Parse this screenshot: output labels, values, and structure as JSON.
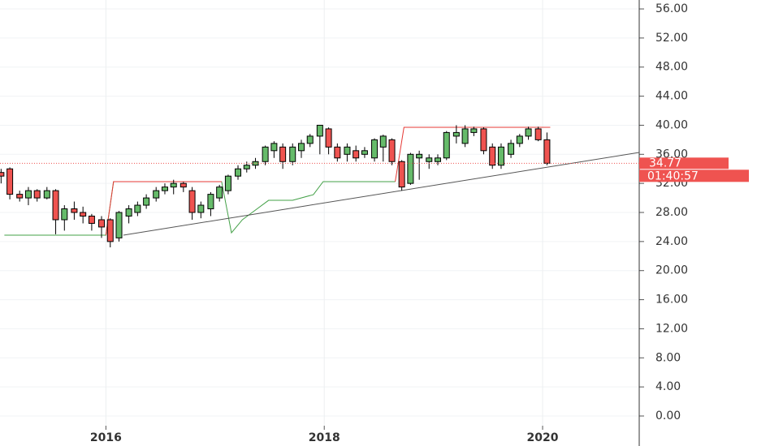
{
  "chart_data": {
    "type": "candlestick",
    "x": [
      2015.04,
      2015.12,
      2015.21,
      2015.29,
      2015.37,
      2015.46,
      2015.54,
      2015.62,
      2015.71,
      2015.79,
      2015.87,
      2015.96,
      2016.04,
      2016.12,
      2016.21,
      2016.29,
      2016.37,
      2016.46,
      2016.54,
      2016.62,
      2016.71,
      2016.79,
      2016.87,
      2016.96,
      2017.04,
      2017.12,
      2017.21,
      2017.29,
      2017.37,
      2017.46,
      2017.54,
      2017.62,
      2017.71,
      2017.79,
      2017.87,
      2017.96,
      2018.04,
      2018.12,
      2018.21,
      2018.29,
      2018.37,
      2018.46,
      2018.54,
      2018.62,
      2018.71,
      2018.79,
      2018.87,
      2018.96,
      2019.04,
      2019.12,
      2019.21,
      2019.29,
      2019.37,
      2019.46,
      2019.54,
      2019.62,
      2019.71,
      2019.79,
      2019.87,
      2019.96,
      2020.04
    ],
    "open": [
      33.5,
      34,
      30.5,
      30,
      31,
      30,
      31,
      27,
      28.5,
      28,
      27.5,
      27,
      27,
      24.5,
      27.5,
      28,
      29,
      30,
      31,
      31.5,
      32,
      31,
      28,
      28.5,
      30,
      31,
      33,
      34,
      34.5,
      35,
      36.5,
      37,
      35,
      36.5,
      37.5,
      38.5,
      39.5,
      37,
      36,
      36.5,
      36,
      35.5,
      37,
      38,
      35,
      32,
      35.5,
      35,
      35,
      35.5,
      38.5,
      37.5,
      39,
      39.5,
      37,
      34.5,
      36,
      37.5,
      38.5,
      39.5,
      38
    ],
    "high": [
      34,
      34.2,
      31,
      31.5,
      31.2,
      31.5,
      31.2,
      29,
      29.5,
      28.8,
      27.8,
      27.5,
      27.2,
      28.2,
      29,
      29.5,
      30.5,
      31.5,
      32,
      32.5,
      32.2,
      31.5,
      29.5,
      30.8,
      31.8,
      33.2,
      34.5,
      35,
      35.5,
      37.2,
      37.8,
      37.5,
      37.5,
      38,
      38.8,
      40,
      39.7,
      37.5,
      37.5,
      37.2,
      37,
      38.2,
      38.7,
      38.2,
      35.2,
      36.2,
      36.5,
      36,
      36,
      39.2,
      40,
      40,
      39.8,
      39.7,
      37.5,
      37.5,
      38,
      38.8,
      39.8,
      39.8,
      39
    ],
    "low": [
      32,
      29.8,
      29.5,
      29,
      29.5,
      29.8,
      25,
      25.5,
      27,
      26.5,
      25.5,
      24.5,
      23.2,
      24,
      26.5,
      27.5,
      28.5,
      29.5,
      30.5,
      30.5,
      30.8,
      27,
      27.2,
      27.5,
      29.5,
      30.5,
      32.5,
      33.5,
      34,
      34.5,
      35.5,
      34,
      34.5,
      35.5,
      37,
      36,
      36,
      35,
      35,
      35,
      35.5,
      35,
      35,
      34.5,
      31,
      31.8,
      32.5,
      34,
      34.5,
      35.2,
      37.5,
      37,
      38.5,
      36,
      34,
      34,
      35.5,
      37,
      38,
      37.8,
      34.5
    ],
    "close": [
      33,
      30.5,
      30,
      31,
      30,
      31,
      27,
      28.5,
      28,
      27.5,
      26.5,
      26,
      24,
      28,
      28.5,
      29,
      30,
      31,
      31.5,
      32,
      31.5,
      28,
      29,
      30.5,
      31.5,
      33,
      34,
      34.5,
      35,
      37,
      37.5,
      35,
      37,
      37.5,
      38.5,
      40,
      37,
      35.5,
      37,
      35.5,
      36.5,
      38,
      38.5,
      35,
      31.5,
      36,
      36,
      35.5,
      35.5,
      39,
      39,
      39.5,
      39.5,
      36.5,
      34.5,
      37,
      37.5,
      38.5,
      39.5,
      38,
      34.77
    ],
    "up_color": "#66bb6a",
    "down_color": "#ef5350",
    "wick_color": "#000000",
    "lines": [
      {
        "color": "#43a047",
        "x": [
          2015.07,
          2016.0,
          2016.07,
          2017.06,
          2017.15,
          2017.25,
          2017.34,
          2017.49,
          2017.71,
          2017.9,
          2017.99,
          2018.65
        ],
        "values": [
          24.88,
          24.88,
          32.24,
          32.24,
          25.2,
          27,
          28,
          29.67,
          29.67,
          30.45,
          32.24,
          32.24
        ]
      },
      {
        "color": "#e53935",
        "x": [
          2016.0,
          2016.07,
          2017.06
        ],
        "values": [
          24.88,
          32.24,
          32.24
        ]
      },
      {
        "color": "#e53935",
        "x": [
          2018.65,
          2018.73,
          2020.07
        ],
        "values": [
          32.24,
          39.71,
          39.71
        ]
      },
      {
        "color": "#555555",
        "x": [
          2016.16,
          2020.885
        ],
        "values": [
          24.88,
          36.26
        ]
      }
    ],
    "last_price": 34.77,
    "countdown": "01:40:57",
    "xlim": [
      2015.03,
      2020.885
    ],
    "ylim": [
      -1.34,
      57.23
    ],
    "xticks": [
      2016,
      2018,
      2020
    ],
    "yticks": [
      {
        "value": 0,
        "label": "0.00"
      },
      {
        "value": 4,
        "label": "4.00"
      },
      {
        "value": 8,
        "label": "8.00"
      },
      {
        "value": 12,
        "label": "12.00"
      },
      {
        "value": 16,
        "label": "16.00"
      },
      {
        "value": 20,
        "label": "20.00"
      },
      {
        "value": 24,
        "label": "24.00"
      },
      {
        "value": 28,
        "label": "28.00"
      },
      {
        "value": 32,
        "label": "32.00"
      },
      {
        "value": 36,
        "label": "36.00"
      },
      {
        "value": 40,
        "label": "40.00"
      },
      {
        "value": 44,
        "label": "44.00"
      },
      {
        "value": 48,
        "label": "48.00"
      },
      {
        "value": 52,
        "label": "52.00"
      },
      {
        "value": 56,
        "label": "56.00"
      }
    ],
    "grid": true
  }
}
